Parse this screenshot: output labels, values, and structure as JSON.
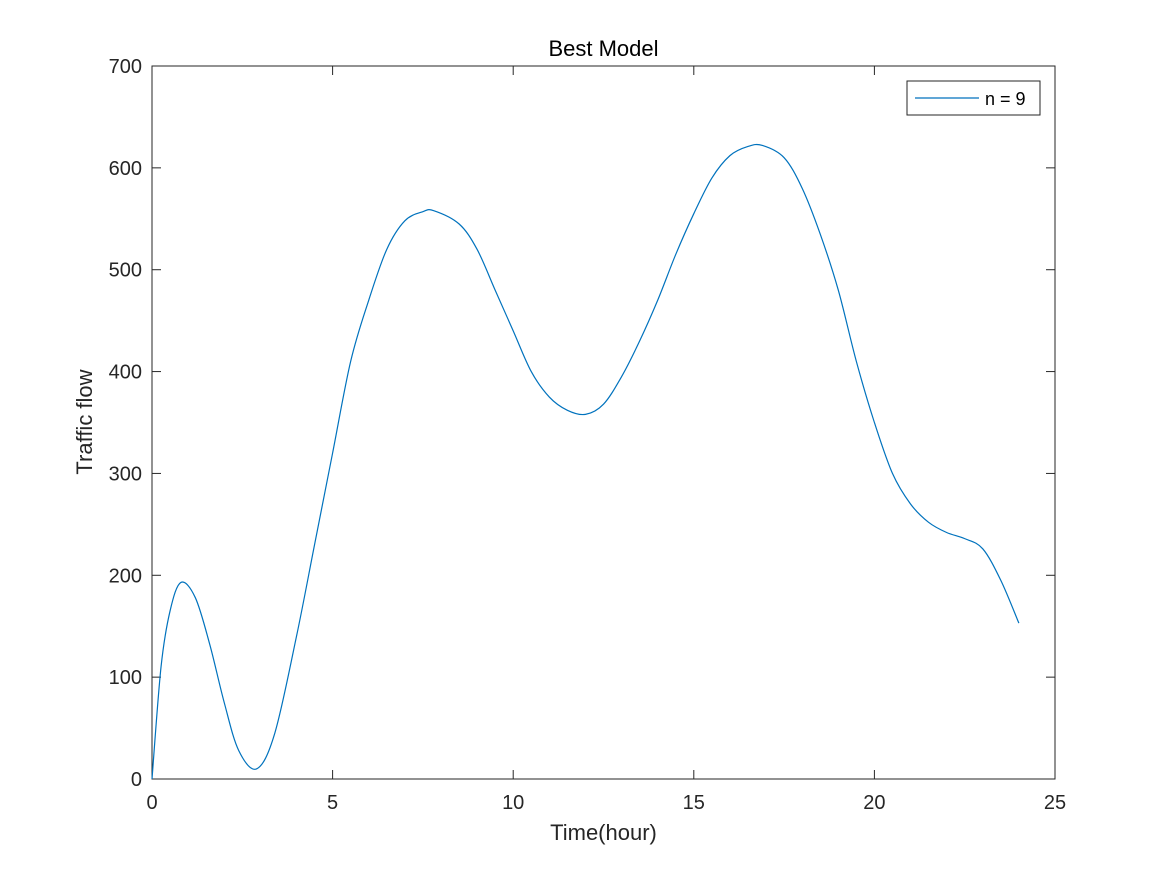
{
  "chart_data": {
    "type": "line",
    "title": "Best Model",
    "xlabel": "Time(hour)",
    "ylabel": "Traffic flow",
    "xlim": [
      0,
      25
    ],
    "ylim": [
      0,
      700
    ],
    "xticks": [
      0,
      5,
      10,
      15,
      20,
      25
    ],
    "yticks": [
      0,
      100,
      200,
      300,
      400,
      500,
      600,
      700
    ],
    "grid": false,
    "legend_position": "top-right",
    "series": [
      {
        "name": "n = 9",
        "color": "#0072BD",
        "x": [
          0,
          0.25,
          0.5,
          0.8,
          1.2,
          1.6,
          2.0,
          2.4,
          2.9,
          3.4,
          4.0,
          4.5,
          5.0,
          5.5,
          6.0,
          6.5,
          7.0,
          7.5,
          7.8,
          8.5,
          9.0,
          9.5,
          10.0,
          10.5,
          11.0,
          11.5,
          12.0,
          12.5,
          13.0,
          13.5,
          14.0,
          14.5,
          15.0,
          15.5,
          16.0,
          16.5,
          16.9,
          17.5,
          18.0,
          18.5,
          19.0,
          19.5,
          20.0,
          20.5,
          21.0,
          21.5,
          22.0,
          22.5,
          23.0,
          23.5,
          24.0
        ],
        "y": [
          0,
          110,
          165,
          193,
          178,
          132,
          75,
          28,
          10,
          45,
          140,
          230,
          320,
          410,
          470,
          520,
          548,
          557,
          558,
          545,
          520,
          480,
          440,
          400,
          375,
          362,
          358,
          368,
          395,
          430,
          470,
          515,
          555,
          590,
          612,
          621,
          622,
          610,
          580,
          535,
          480,
          410,
          350,
          300,
          270,
          252,
          242,
          236,
          226,
          195,
          153
        ]
      }
    ]
  }
}
